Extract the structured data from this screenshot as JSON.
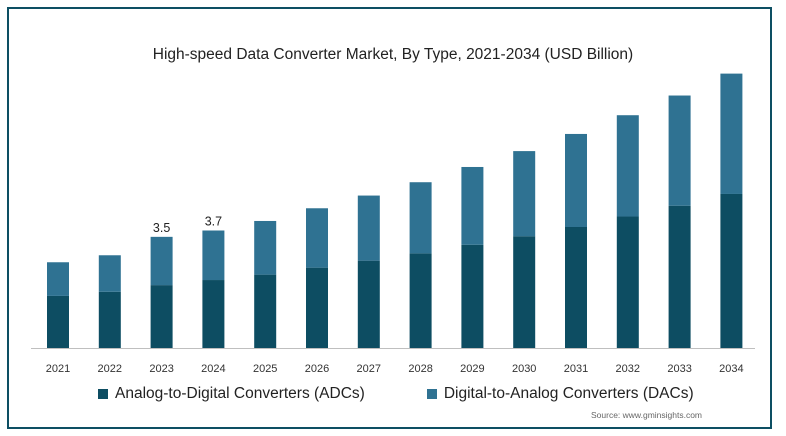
{
  "chart_data": {
    "type": "bar",
    "stacked": true,
    "title": "High-speed Data Converter Market, By Type, 2021-2034 (USD Billion)",
    "categories": [
      "2021",
      "2022",
      "2023",
      "2024",
      "2025",
      "2026",
      "2027",
      "2028",
      "2029",
      "2030",
      "2031",
      "2032",
      "2033",
      "2034"
    ],
    "series": [
      {
        "name": "Analog-to-Digital Converters (ADCs)",
        "color": "#0d4d62",
        "values": [
          1.64,
          1.77,
          1.98,
          2.14,
          2.31,
          2.53,
          2.75,
          2.98,
          3.25,
          3.52,
          3.81,
          4.14,
          4.48,
          4.85
        ]
      },
      {
        "name": "Digital-to-Analog Converters (DACs)",
        "color": "#2f7292",
        "values": [
          1.06,
          1.15,
          1.52,
          1.56,
          1.69,
          1.87,
          2.05,
          2.24,
          2.45,
          2.68,
          2.93,
          3.19,
          3.47,
          3.79
        ]
      }
    ],
    "annotations": [
      {
        "category": "2023",
        "label": "3.5"
      },
      {
        "category": "2024",
        "label": "3.7"
      }
    ],
    "ylim": [
      0,
      9.1
    ],
    "grid": false,
    "legend_position": "bottom"
  },
  "source": "Source: www.gminsights.com"
}
